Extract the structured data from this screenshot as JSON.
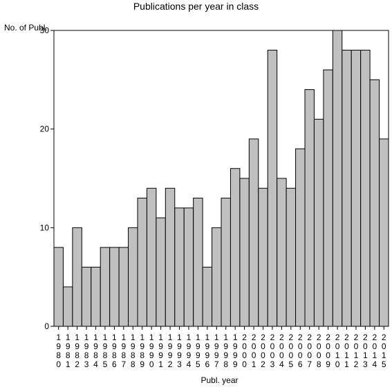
{
  "chart_data": {
    "type": "bar",
    "title": "Publications per year in class",
    "ylabel": "No. of Publ.",
    "xlabel": "Publ. year",
    "ylim": [
      0,
      30
    ],
    "yticks": [
      0,
      10,
      20,
      30
    ],
    "grid": false,
    "bar_color": "#c0c0c0",
    "categories": [
      "1980",
      "1981",
      "1982",
      "1983",
      "1984",
      "1985",
      "1986",
      "1987",
      "1988",
      "1989",
      "1990",
      "1991",
      "1992",
      "1993",
      "1994",
      "1995",
      "1996",
      "1997",
      "1998",
      "1999",
      "2000",
      "2001",
      "2002",
      "2003",
      "2004",
      "2005",
      "2006",
      "2007",
      "2008",
      "2009",
      "2010",
      "2011",
      "2012",
      "2013",
      "2014",
      "2015"
    ],
    "values": [
      8,
      4,
      10,
      6,
      6,
      8,
      8,
      8,
      10,
      13,
      14,
      11,
      14,
      12,
      12,
      13,
      6,
      10,
      13,
      16,
      15,
      19,
      14,
      28,
      15,
      14,
      18,
      24,
      21,
      26,
      30,
      28,
      28,
      28,
      25,
      19
    ]
  }
}
